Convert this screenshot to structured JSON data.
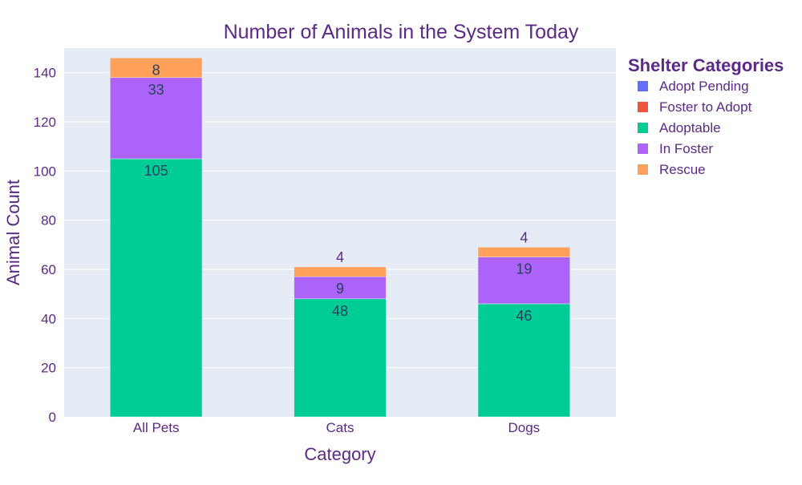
{
  "chart_data": {
    "type": "bar",
    "barmode": "stack",
    "title": "Number of Animals in the System Today",
    "xlabel": "Category",
    "ylabel": "Animal Count",
    "categories": [
      "All Pets",
      "Cats",
      "Dogs"
    ],
    "ylim": [
      0,
      150
    ],
    "yticks": [
      0,
      20,
      40,
      60,
      80,
      100,
      120,
      140
    ],
    "grid": true,
    "legend_title": "Shelter Categories",
    "legend_position": "right",
    "series": [
      {
        "name": "Adopt Pending",
        "color": "#636efa",
        "values": [
          0,
          0,
          0
        ],
        "labels": [
          "",
          "",
          ""
        ]
      },
      {
        "name": "Foster to Adopt",
        "color": "#ef553b",
        "values": [
          0,
          0,
          0
        ],
        "labels": [
          "",
          "",
          ""
        ]
      },
      {
        "name": "Adoptable",
        "color": "#00cc96",
        "values": [
          105,
          48,
          46
        ],
        "labels": [
          "105",
          "48",
          "46"
        ]
      },
      {
        "name": "In Foster",
        "color": "#ab63fa",
        "values": [
          33,
          9,
          19
        ],
        "labels": [
          "33",
          "9",
          "19"
        ]
      },
      {
        "name": "Rescue",
        "color": "#ffa15a",
        "values": [
          8,
          4,
          4
        ],
        "labels": [
          "8",
          "4",
          "4"
        ]
      }
    ]
  }
}
